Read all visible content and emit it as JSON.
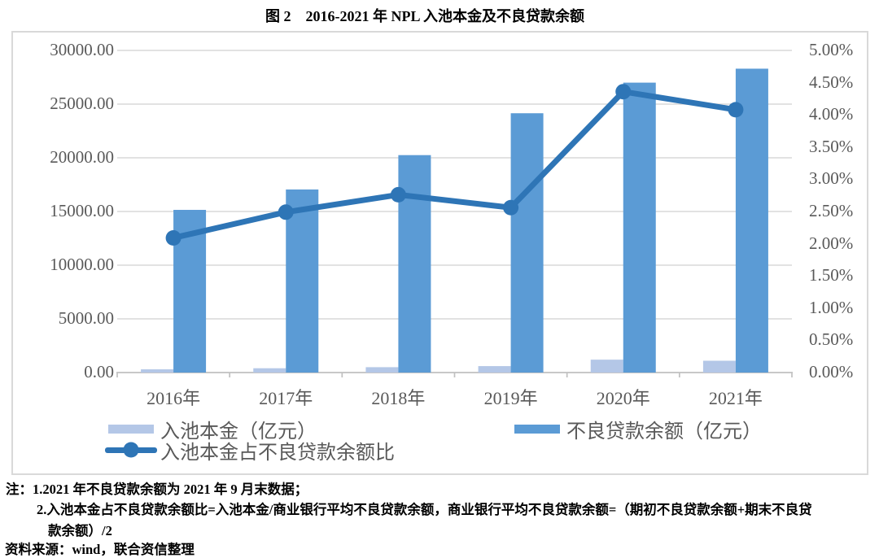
{
  "page": {
    "title": "图 2　2016-2021 年 NPL 入池本金及不良贷款余额"
  },
  "colors": {
    "pool_bar": "#B4C7E7",
    "npl_bar": "#5B9BD5",
    "ratio_line": "#2E75B6",
    "gridline": "#D9D9D9",
    "axis_line": "#C0C0C0",
    "axis_text": "#595959",
    "frame_border": "#D9D9D9"
  },
  "chart_data": {
    "type": "bar",
    "subtype": "combo-bar-line-dual-axis",
    "title": "图 2　2016-2021 年 NPL 入池本金及不良贷款余额",
    "categories": [
      "2016年",
      "2017年",
      "2018年",
      "2019年",
      "2020年",
      "2021年"
    ],
    "series": [
      {
        "name": "入池本金（亿元）",
        "chart": "bar",
        "axis": "left",
        "color": "#B4C7E7",
        "values": [
          300,
          400,
          500,
          600,
          1200,
          1100
        ]
      },
      {
        "name": "不良贷款余额（亿元）",
        "chart": "bar",
        "axis": "left",
        "color": "#5B9BD5",
        "values": [
          15150,
          17050,
          20250,
          24150,
          27000,
          28300
        ]
      },
      {
        "name": "入池本金占不良贷款余额比",
        "chart": "line",
        "axis": "right",
        "color": "#2E75B6",
        "values": [
          2.09,
          2.49,
          2.76,
          2.56,
          4.36,
          4.08
        ],
        "unit": "%"
      }
    ],
    "left_axis": {
      "min": 0,
      "max": 30000,
      "step": 5000,
      "labels": [
        "0.00",
        "5000.00",
        "10000.00",
        "15000.00",
        "20000.00",
        "25000.00",
        "30000.00"
      ]
    },
    "right_axis": {
      "min": 0,
      "max": 5,
      "step": 0.5,
      "labels": [
        "0.00%",
        "0.50%",
        "1.00%",
        "1.50%",
        "2.00%",
        "2.50%",
        "3.00%",
        "3.50%",
        "4.00%",
        "4.50%",
        "5.00%"
      ]
    },
    "grid": true,
    "legend_position": "bottom"
  },
  "legend": {
    "pool": "入池本金（亿元）",
    "npl": "不良贷款余额（亿元）",
    "ratio": "入池本金占不良贷款余额比"
  },
  "notes": {
    "line1": "注：1.2021 年不良贷款余额为 2021 年 9 月末数据；",
    "line2": "2.入池本金占不良贷款余额比=入池本金/商业银行平均不良贷款余额，商业银行平均不良贷款余额=（期初不良贷款余额+期末不良贷",
    "line3": "款余额）/2",
    "source": "资料来源：wind，联合资信整理"
  }
}
